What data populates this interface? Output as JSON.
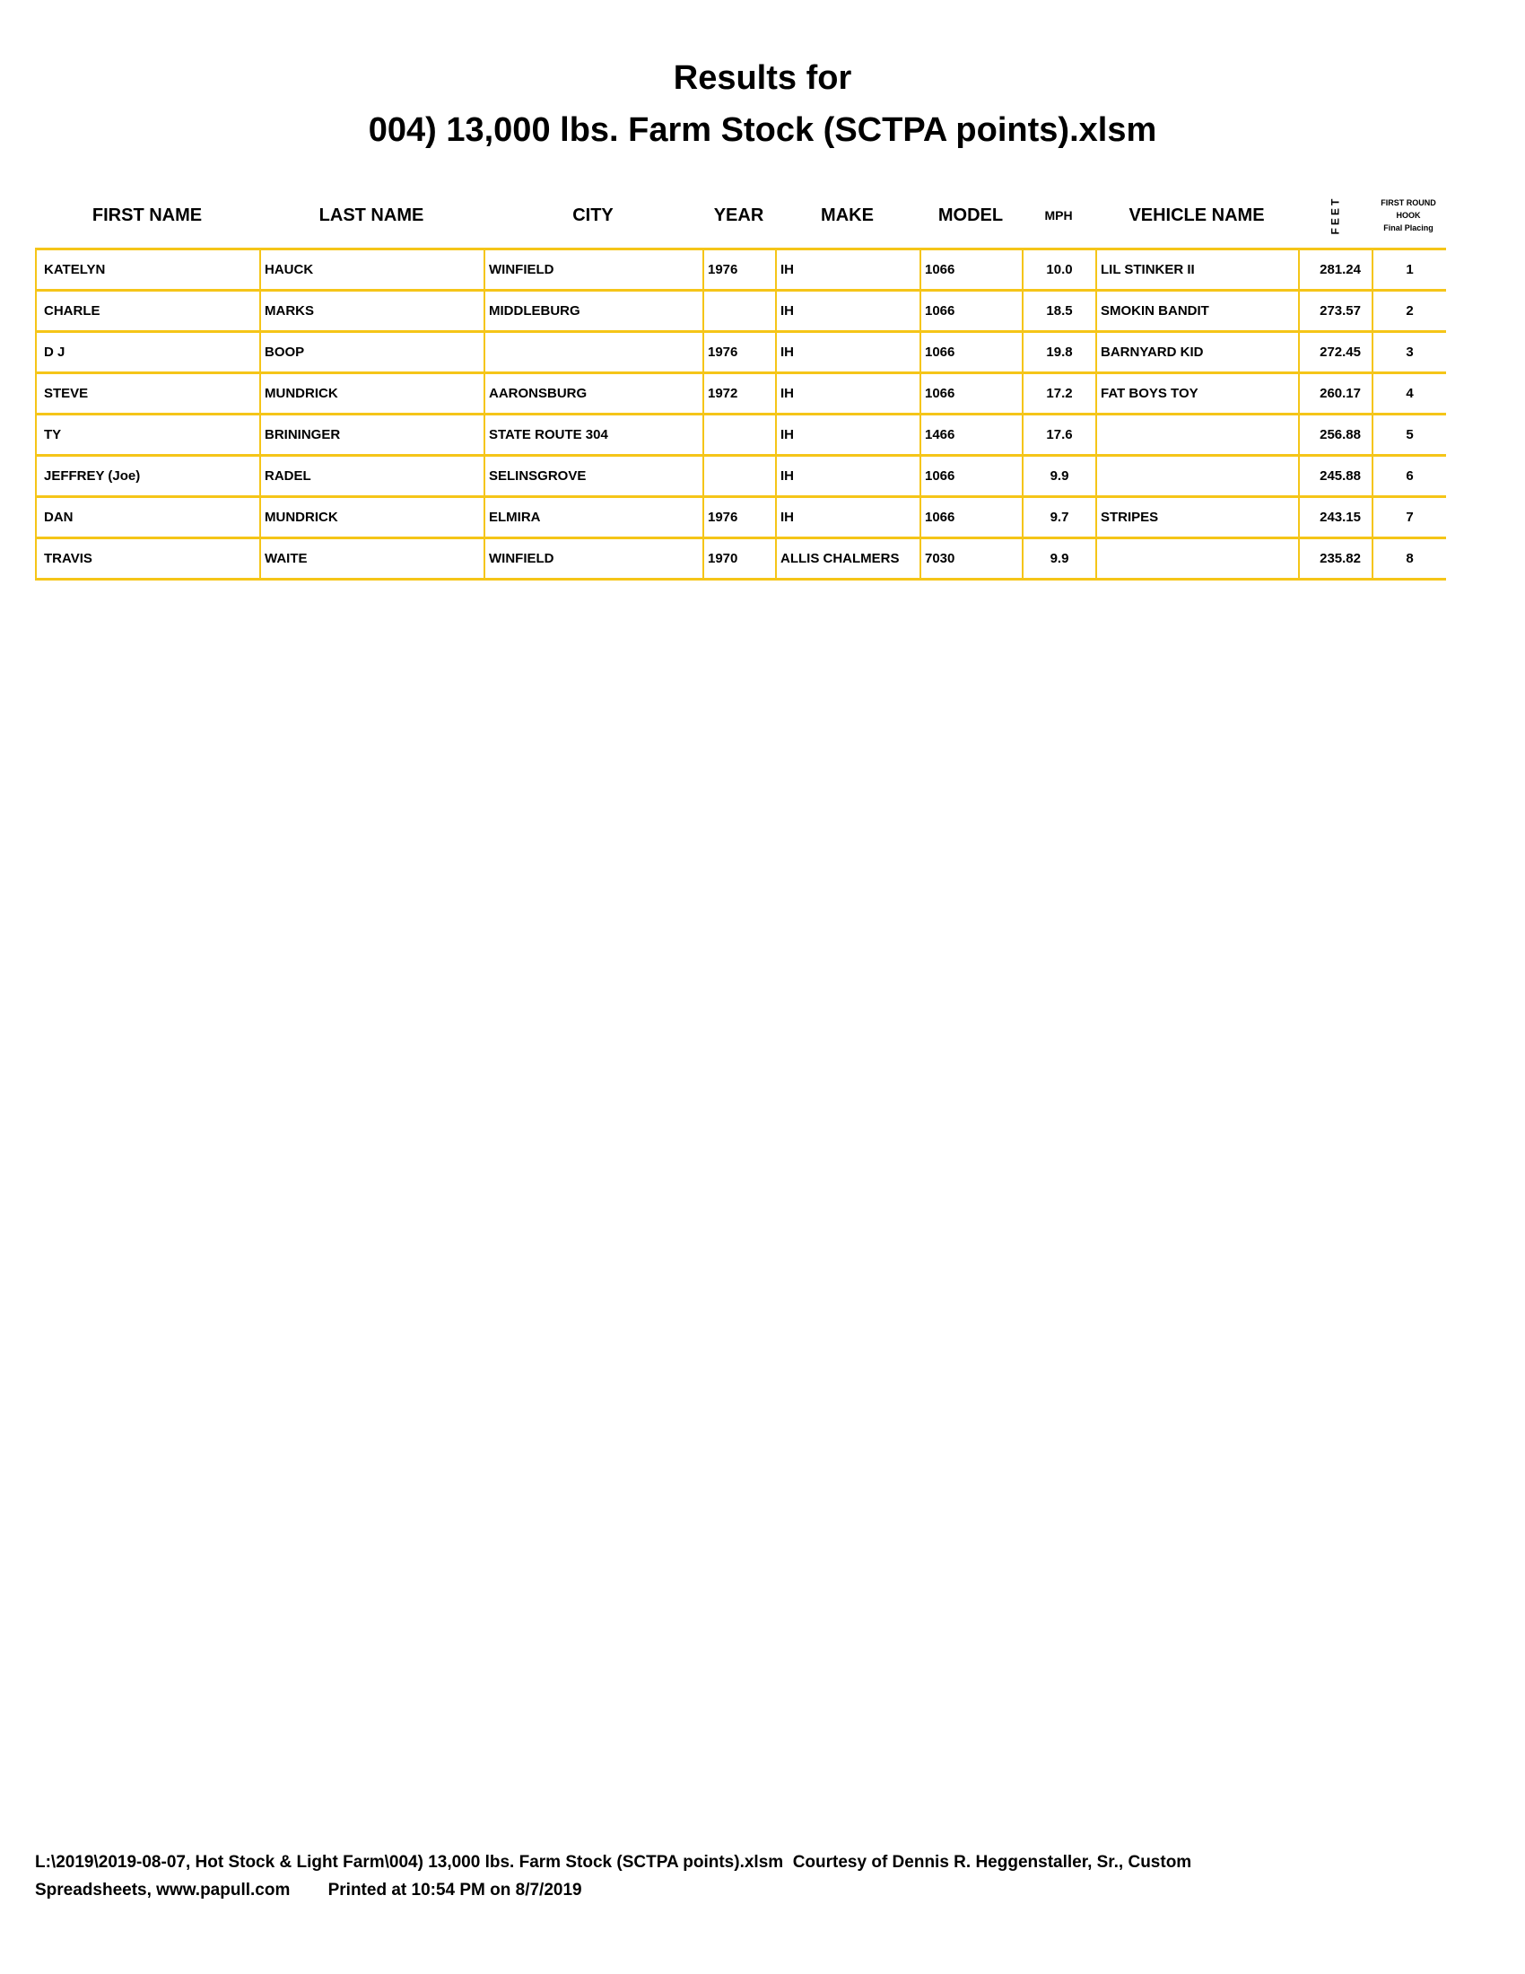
{
  "title": {
    "line1": "Results for",
    "line2": "004) 13,000 lbs. Farm Stock (SCTPA points).xlsm"
  },
  "columns": [
    "FIRST NAME",
    "LAST NAME",
    "CITY",
    "YEAR",
    "MAKE",
    "MODEL",
    "MPH",
    "VEHICLE NAME",
    "FEET"
  ],
  "placing_header": {
    "line1": "FIRST ROUND",
    "line2": "HOOK",
    "line3": "Final Placing"
  },
  "accent_color": "#f5c518",
  "rows": [
    [
      "KATELYN",
      "HAUCK",
      "WINFIELD",
      "1976",
      "IH",
      "1066",
      "10.0",
      "LIL STINKER II",
      "281.24",
      "1"
    ],
    [
      "CHARLE",
      "MARKS",
      "MIDDLEBURG",
      "",
      "IH",
      "1066",
      "18.5",
      "SMOKIN BANDIT",
      "273.57",
      "2"
    ],
    [
      "D J",
      "BOOP",
      "",
      "1976",
      "IH",
      "1066",
      "19.8",
      "BARNYARD KID",
      "272.45",
      "3"
    ],
    [
      "STEVE",
      "MUNDRICK",
      "AARONSBURG",
      "1972",
      "IH",
      "1066",
      "17.2",
      "FAT BOYS TOY",
      "260.17",
      "4"
    ],
    [
      "TY",
      "BRININGER",
      "STATE ROUTE 304",
      "",
      "IH",
      "1466",
      "17.6",
      "",
      "256.88",
      "5"
    ],
    [
      "JEFFREY (Joe)",
      "RADEL",
      "SELINSGROVE",
      "",
      "IH",
      "1066",
      "9.9",
      "",
      "245.88",
      "6"
    ],
    [
      "DAN",
      "MUNDRICK",
      "ELMIRA",
      "1976",
      "IH",
      "1066",
      "9.7",
      "STRIPES",
      "243.15",
      "7"
    ],
    [
      "TRAVIS",
      "WAITE",
      "WINFIELD",
      "1970",
      "ALLIS CHALMERS",
      "7030",
      "9.9",
      "",
      "235.82",
      "8"
    ]
  ],
  "footer": {
    "line1": "L:\\2019\\2019-08-07, Hot Stock & Light Farm\\004) 13,000 lbs. Farm Stock (SCTPA points).xlsm  Courtesy of Dennis R. Heggenstaller, Sr., Custom",
    "line2": "Spreadsheets, www.papull.com        Printed at 10:54 PM on 8/7/2019"
  }
}
